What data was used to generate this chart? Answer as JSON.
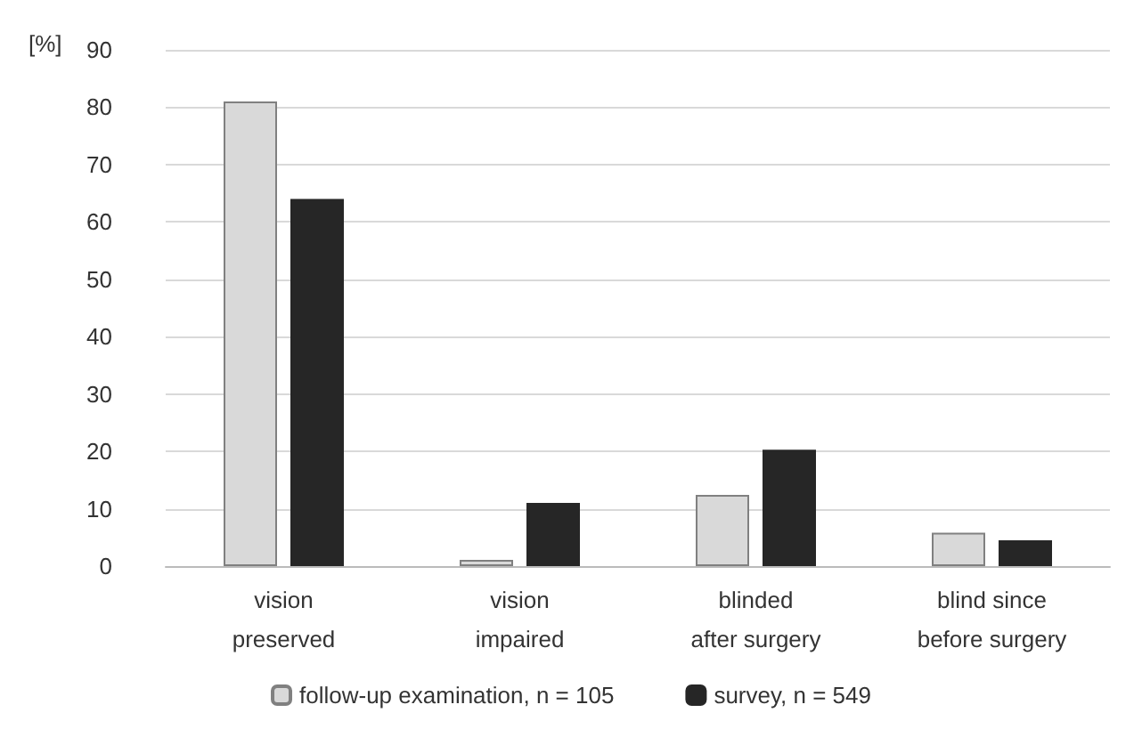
{
  "chart_data": {
    "type": "bar",
    "ylabel": "[%]",
    "categories": [
      "vision\npreserved",
      "vision\nimpaired",
      "blinded\nafter surgery",
      "blind since\nbefore surgery"
    ],
    "series": [
      {
        "name": "follow-up examination, n = 105",
        "color": "#d9d9d9",
        "values": [
          81,
          1.1,
          12.4,
          5.8
        ]
      },
      {
        "name": "survey, n = 549",
        "color": "#262626",
        "values": [
          64,
          11,
          20.3,
          4.5
        ]
      }
    ],
    "ylim": [
      0,
      90
    ],
    "yticks": [
      0,
      10,
      20,
      30,
      40,
      50,
      60,
      70,
      80,
      90
    ],
    "grid": "y",
    "legend": "bottom"
  }
}
